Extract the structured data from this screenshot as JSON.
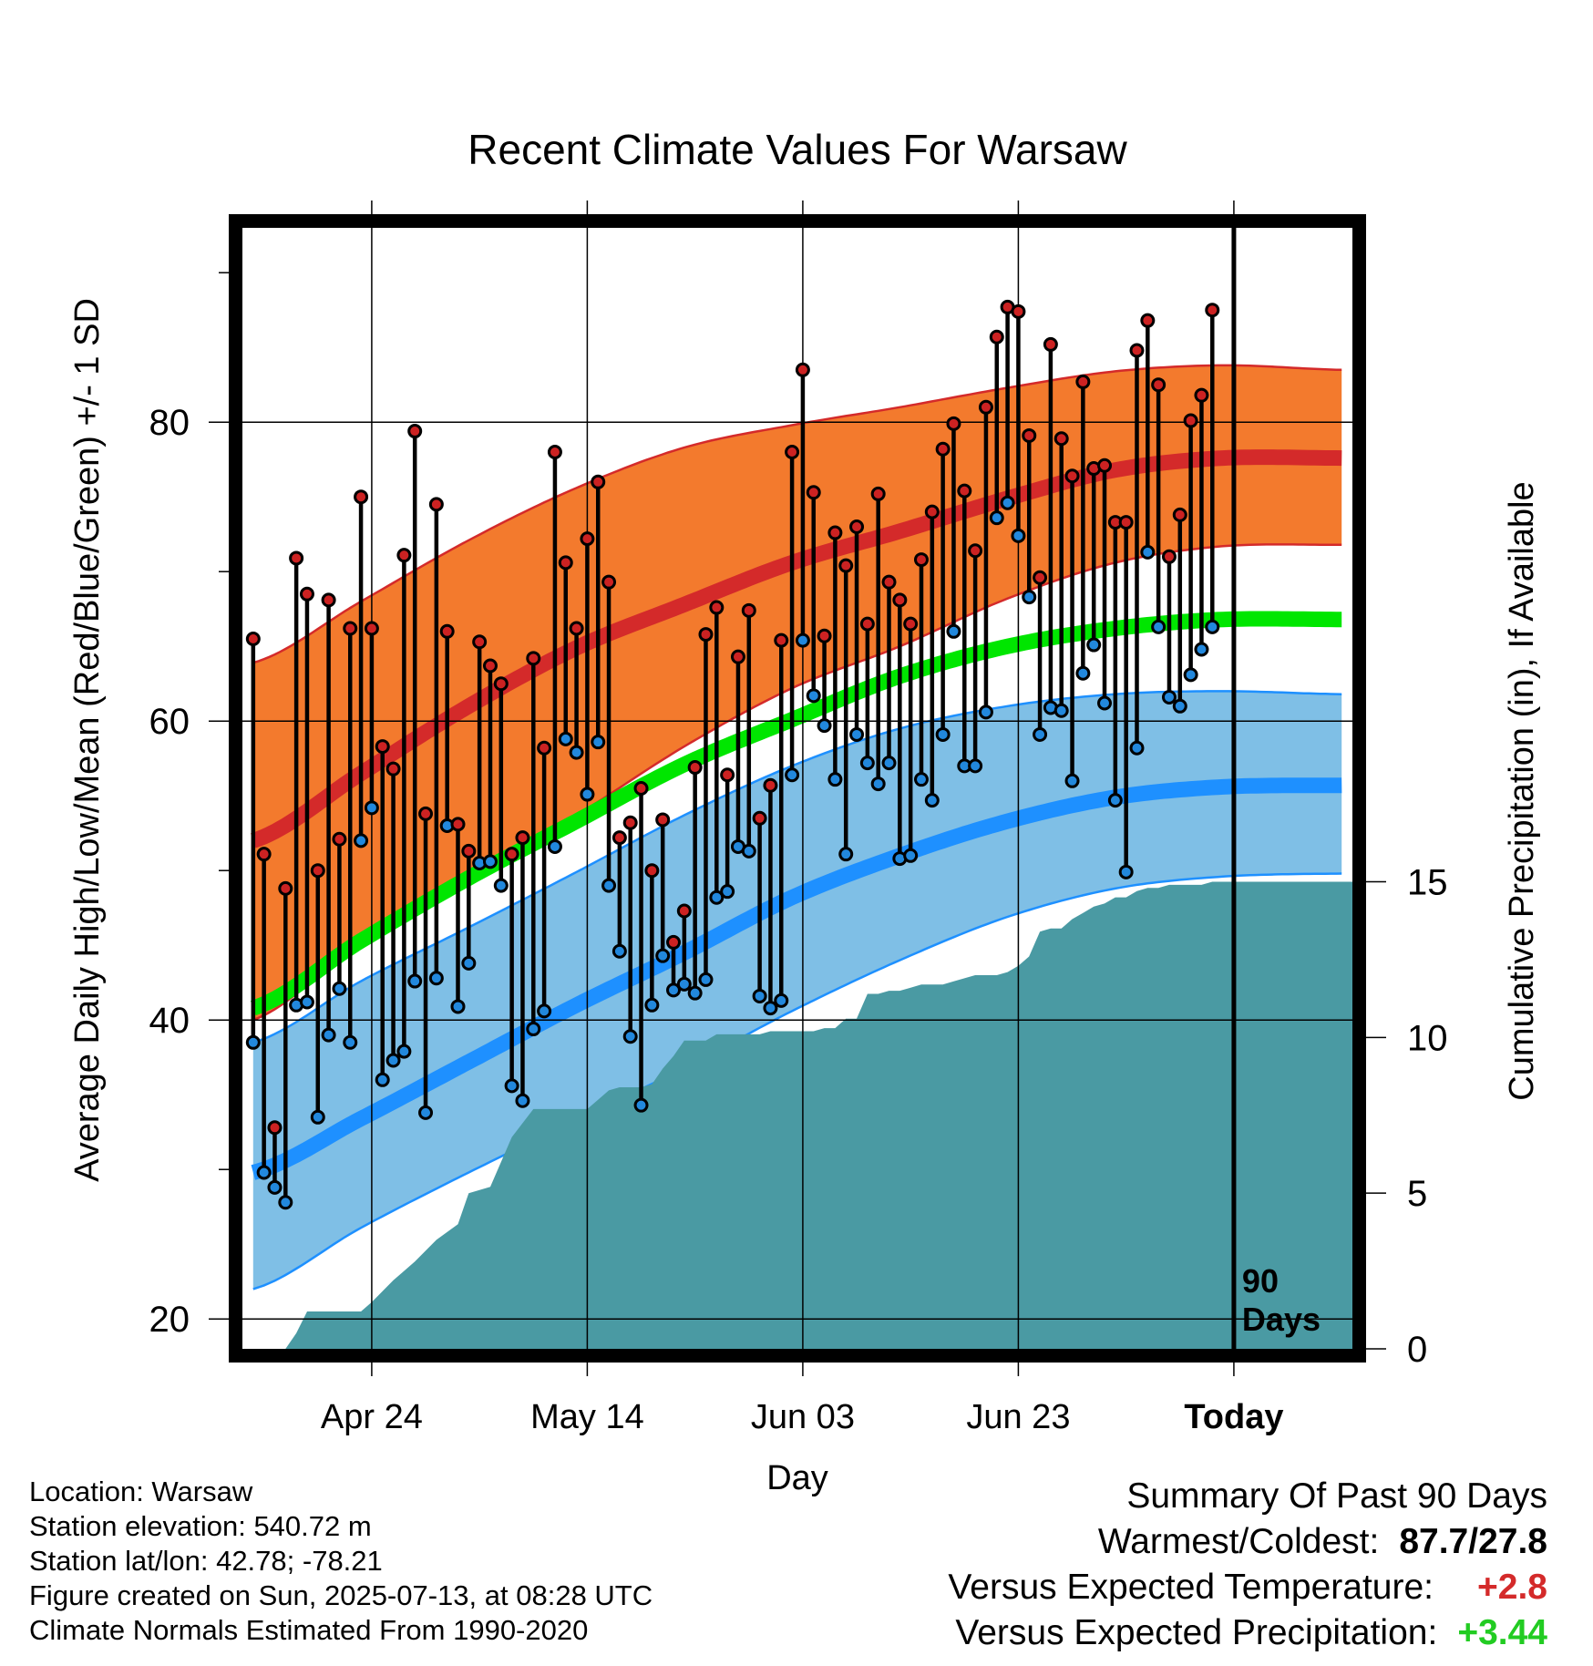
{
  "chart_data": {
    "type": "line",
    "title": "Recent Climate Values For Warsaw",
    "xlabel": "Day",
    "ylabel": "Average Daily High/Low/Mean (Red/Blue/Green) +/- 1 SD",
    "y2label": "Cumulative Precipitation (in), If Available",
    "ylim": [
      18,
      93
    ],
    "y2lim": [
      0,
      36
    ],
    "xlim": [
      -1,
      102
    ],
    "x_axis": {
      "tick_positions": [
        11,
        31,
        51,
        71,
        91
      ],
      "tick_labels": [
        "Apr 24",
        "May 14",
        "Jun 03",
        "Jun 23",
        "Today"
      ]
    },
    "y_ticks": [
      20,
      40,
      60,
      80
    ],
    "y2_ticks": [
      0,
      5,
      10,
      15
    ],
    "today_marker": {
      "x": 91,
      "label_line1": "90",
      "label_line2": "Days"
    },
    "grid": true,
    "colors": {
      "high_band": "#f37a2d",
      "high_mean": "#d42a2a",
      "low_band": "#7fbfe6",
      "low_mean": "#1e90ff",
      "mean": "#00e600",
      "precip": "#4a9aa3",
      "high_point": "#cc2222",
      "low_point": "#2288dd"
    },
    "normal_days": [
      0,
      10,
      20,
      30,
      40,
      50,
      60,
      70,
      80,
      90,
      101
    ],
    "normal_high_upper": [
      63.9,
      68.0,
      72.1,
      75.6,
      78.3,
      79.8,
      81.0,
      82.3,
      83.4,
      83.8,
      83.5
    ],
    "normal_high": [
      52.0,
      56.5,
      61.0,
      64.9,
      67.8,
      70.6,
      72.7,
      74.9,
      76.8,
      77.6,
      77.6
    ],
    "normal_high_lower": [
      40.0,
      45.2,
      49.6,
      53.7,
      58.3,
      62.2,
      65.0,
      68.2,
      70.6,
      71.7,
      71.8
    ],
    "normal_mean": [
      40.8,
      45.3,
      49.5,
      53.3,
      57.1,
      60.1,
      63.0,
      65.0,
      66.2,
      66.8,
      66.8
    ],
    "normal_low_upper": [
      38.5,
      42.6,
      46.2,
      49.9,
      53.7,
      57.0,
      59.5,
      61.0,
      61.8,
      62.0,
      61.8
    ],
    "normal_low": [
      29.8,
      33.4,
      37.2,
      41.0,
      44.5,
      48.2,
      51.0,
      53.3,
      54.9,
      55.6,
      55.7
    ],
    "normal_low_lower": [
      22.0,
      26.1,
      29.8,
      33.3,
      36.8,
      40.6,
      44.0,
      46.9,
      48.8,
      49.6,
      49.8
    ],
    "days": [
      0,
      1,
      2,
      3,
      4,
      5,
      6,
      7,
      8,
      9,
      10,
      11,
      12,
      13,
      14,
      15,
      16,
      17,
      18,
      19,
      20,
      21,
      22,
      23,
      24,
      25,
      26,
      27,
      28,
      29,
      30,
      31,
      32,
      33,
      34,
      35,
      36,
      37,
      38,
      39,
      40,
      41,
      42,
      43,
      44,
      45,
      46,
      47,
      48,
      49,
      50,
      51,
      52,
      53,
      54,
      55,
      56,
      57,
      58,
      59,
      60,
      61,
      62,
      63,
      64,
      65,
      66,
      67,
      68,
      69,
      70,
      71,
      72,
      73,
      74,
      75,
      76,
      77,
      78,
      79,
      80,
      81,
      82,
      83,
      84,
      85,
      86,
      87,
      88,
      89
    ],
    "daily_high": [
      65.5,
      51.1,
      32.8,
      48.8,
      70.9,
      68.5,
      50.0,
      68.1,
      52.1,
      66.2,
      75.0,
      66.2,
      58.3,
      56.8,
      71.1,
      79.4,
      53.8,
      74.5,
      66.0,
      53.1,
      51.3,
      65.3,
      63.7,
      62.5,
      51.1,
      52.2,
      64.2,
      58.2,
      78.0,
      70.6,
      66.2,
      72.2,
      76.0,
      69.3,
      52.2,
      53.2,
      55.5,
      50.0,
      53.4,
      45.2,
      47.3,
      56.9,
      65.8,
      67.6,
      56.4,
      64.3,
      67.4,
      53.5,
      55.7,
      65.4,
      78.0,
      83.5,
      75.3,
      65.7,
      72.6,
      70.4,
      73.0,
      66.5,
      75.2,
      69.3,
      68.1,
      66.5,
      70.8,
      74.0,
      78.2,
      79.9,
      75.4,
      71.4,
      81.0,
      85.7,
      87.7,
      87.4,
      79.1,
      69.6,
      85.2,
      78.9,
      76.4,
      82.7,
      76.9,
      77.1,
      73.3,
      73.3,
      84.8,
      86.8,
      82.5,
      71.0,
      73.8,
      80.1,
      81.8,
      87.5
    ],
    "daily_low": [
      38.5,
      29.8,
      28.8,
      27.8,
      41.0,
      41.2,
      33.5,
      39.0,
      42.1,
      38.5,
      52.0,
      54.2,
      36.0,
      37.3,
      37.9,
      42.6,
      33.8,
      42.8,
      53.0,
      40.9,
      43.8,
      50.5,
      50.6,
      49.0,
      35.6,
      34.6,
      39.4,
      40.6,
      51.6,
      58.8,
      57.9,
      55.1,
      58.6,
      49.0,
      44.6,
      38.9,
      34.3,
      41.0,
      44.3,
      42.0,
      42.4,
      41.8,
      42.7,
      48.2,
      48.6,
      51.6,
      51.3,
      41.6,
      40.8,
      41.3,
      56.4,
      65.4,
      61.7,
      59.7,
      56.1,
      51.1,
      59.1,
      57.2,
      55.8,
      57.2,
      50.8,
      51.0,
      56.1,
      54.7,
      59.1,
      66.0,
      57.0,
      57.0,
      60.6,
      73.6,
      74.6,
      72.4,
      68.3,
      59.1,
      60.9,
      60.7,
      56.0,
      63.2,
      65.1,
      61.2,
      54.7,
      49.9,
      58.2,
      71.3,
      66.3,
      61.6,
      61.0,
      63.1,
      64.8,
      66.3
    ],
    "precip_x": [
      -1,
      3,
      4,
      5,
      7,
      10,
      11,
      13,
      15,
      17,
      19,
      20,
      22,
      24,
      26,
      28,
      29,
      31,
      32,
      33,
      34,
      35,
      36,
      37,
      38,
      39,
      40,
      41,
      42,
      43,
      44,
      45,
      46,
      47,
      48,
      49,
      50,
      51,
      52,
      53,
      54,
      55,
      56,
      57,
      58,
      59,
      60,
      61,
      62,
      63,
      64,
      65,
      66,
      67,
      68,
      69,
      70,
      71,
      72,
      73,
      74,
      75,
      76,
      77,
      78,
      79,
      80,
      81,
      82,
      83,
      84,
      85,
      86,
      87,
      88,
      89,
      90,
      91,
      102
    ],
    "precip_y": [
      0,
      0,
      0.5,
      1.2,
      1.2,
      1.2,
      1.5,
      2.2,
      2.8,
      3.5,
      4.0,
      5.0,
      5.2,
      6.8,
      7.7,
      7.7,
      7.7,
      7.7,
      8.0,
      8.3,
      8.4,
      8.4,
      8.4,
      8.5,
      9.0,
      9.4,
      9.9,
      9.9,
      9.9,
      10.1,
      10.1,
      10.1,
      10.1,
      10.1,
      10.2,
      10.2,
      10.2,
      10.2,
      10.2,
      10.3,
      10.3,
      10.6,
      10.6,
      11.4,
      11.4,
      11.5,
      11.5,
      11.6,
      11.7,
      11.7,
      11.7,
      11.8,
      11.9,
      12.0,
      12.0,
      12.0,
      12.1,
      12.3,
      12.6,
      13.4,
      13.5,
      13.5,
      13.8,
      14.0,
      14.2,
      14.3,
      14.5,
      14.5,
      14.7,
      14.8,
      14.8,
      14.9,
      14.9,
      14.9,
      14.9,
      15.0,
      15.0,
      15.0,
      15.0
    ]
  },
  "footer": {
    "location": "Location: Warsaw",
    "elevation": "Station elevation: 540.72 m",
    "latlon": "Station lat/lon: 42.78; -78.21",
    "created": "Figure created on Sun, 2025-07-13, at 08:28 UTC",
    "normals": "Climate Normals Estimated From 1990-2020"
  },
  "summary": {
    "title": "Summary Of Past 90 Days",
    "warmest_coldest_label": "Warmest/Coldest:",
    "warmest_coldest_value": "87.7/27.8",
    "temp_label": "Versus Expected Temperature:",
    "temp_value": "+2.8",
    "temp_color": "#d42a2a",
    "precip_label": "Versus Expected Precipitation:",
    "precip_value": "+3.44",
    "precip_color": "#22cc22"
  }
}
